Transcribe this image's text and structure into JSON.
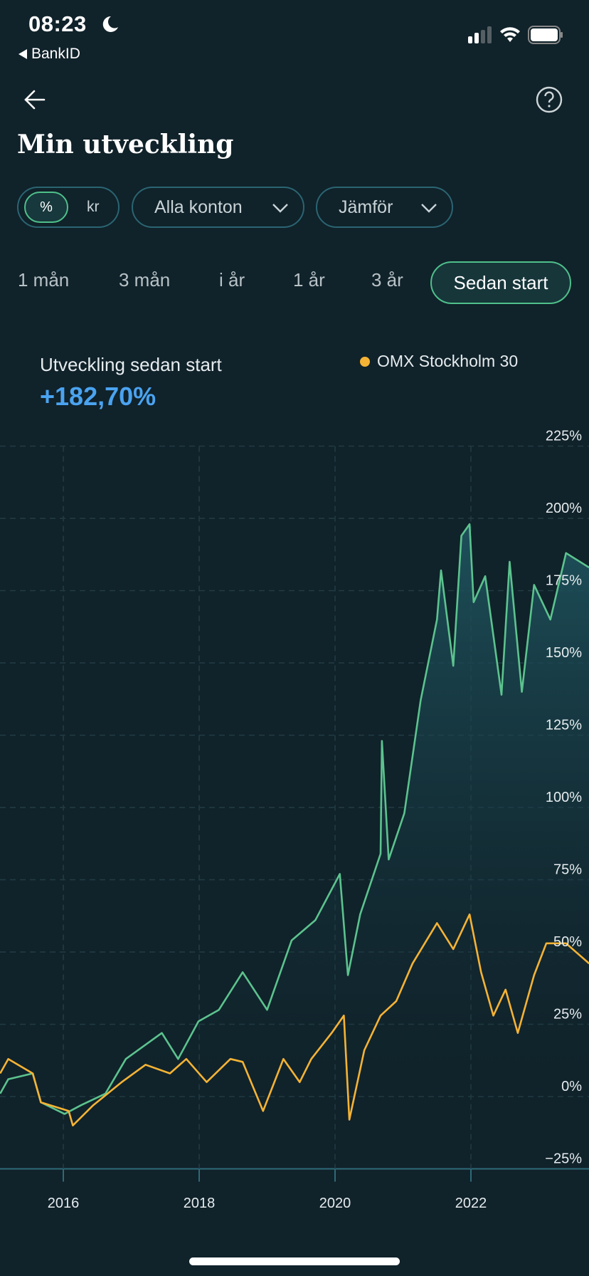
{
  "status_bar": {
    "time": "08:23",
    "back_app": "BankID"
  },
  "header": {
    "title": "Min utveckling"
  },
  "filters": {
    "unit_options": [
      "%",
      "kr"
    ],
    "selected_unit": "%",
    "accounts": "Alla konton",
    "compare": "Jämför"
  },
  "periods": [
    "1 mån",
    "3 mån",
    "i år",
    "1 år",
    "3 år",
    "Sedan start"
  ],
  "selected_period": "Sedan start",
  "summary": {
    "label": "Utveckling sedan start",
    "value": "+182,70%"
  },
  "colors": {
    "background": "#10222a",
    "portfolio": "#5cc38e",
    "benchmark": "#f5b335",
    "value": "#4aa3f0",
    "pill_border": "#2a6572"
  },
  "chart_data": {
    "type": "line",
    "title": "",
    "xlabel": "",
    "ylabel": "",
    "xlim": [
      2015.07,
      2023.74
    ],
    "ylim": [
      -25,
      225
    ],
    "grid": true,
    "legend": "top-right",
    "x_ticks": [
      2016,
      2018,
      2020,
      2022
    ],
    "x_tick_labels": [
      "2016",
      "2018",
      "2020",
      "2022"
    ],
    "y_ticks": [
      -25,
      0,
      25,
      50,
      75,
      100,
      125,
      150,
      175,
      200,
      225
    ],
    "y_tick_labels": [
      "−25%",
      "0%",
      "25%",
      "50%",
      "75%",
      "100%",
      "125%",
      "150%",
      "175%",
      "200%",
      "225%"
    ],
    "series": [
      {
        "name": "Min utveckling",
        "points": [
          [
            2015.07,
            1
          ],
          [
            2015.19,
            6
          ],
          [
            2015.55,
            8
          ],
          [
            2015.67,
            -2
          ],
          [
            2016.02,
            -6
          ],
          [
            2016.26,
            -3
          ],
          [
            2016.62,
            1
          ],
          [
            2016.92,
            13
          ],
          [
            2017.45,
            22
          ],
          [
            2017.69,
            13
          ],
          [
            2017.99,
            26
          ],
          [
            2018.29,
            30
          ],
          [
            2018.64,
            43
          ],
          [
            2019.0,
            30
          ],
          [
            2019.36,
            54
          ],
          [
            2019.71,
            61
          ],
          [
            2020.07,
            77
          ],
          [
            2020.19,
            42
          ],
          [
            2020.37,
            63
          ],
          [
            2020.67,
            84
          ],
          [
            2020.69,
            123
          ],
          [
            2020.79,
            82
          ],
          [
            2021.02,
            98
          ],
          [
            2021.26,
            137
          ],
          [
            2021.5,
            165
          ],
          [
            2021.56,
            182
          ],
          [
            2021.74,
            149
          ],
          [
            2021.86,
            194
          ],
          [
            2021.98,
            198
          ],
          [
            2022.04,
            171
          ],
          [
            2022.21,
            180
          ],
          [
            2022.45,
            139
          ],
          [
            2022.57,
            185
          ],
          [
            2022.75,
            140
          ],
          [
            2022.93,
            177
          ],
          [
            2023.17,
            165
          ],
          [
            2023.4,
            188
          ],
          [
            2023.74,
            183
          ]
        ]
      },
      {
        "name": "OMX Stockholm 30",
        "points": [
          [
            2015.07,
            8
          ],
          [
            2015.19,
            13
          ],
          [
            2015.55,
            8
          ],
          [
            2015.67,
            -2
          ],
          [
            2016.08,
            -5
          ],
          [
            2016.14,
            -10
          ],
          [
            2016.44,
            -3
          ],
          [
            2016.86,
            5
          ],
          [
            2017.21,
            11
          ],
          [
            2017.57,
            8
          ],
          [
            2017.81,
            13
          ],
          [
            2018.11,
            5
          ],
          [
            2018.46,
            13
          ],
          [
            2018.64,
            12
          ],
          [
            2018.94,
            -5
          ],
          [
            2019.24,
            13
          ],
          [
            2019.48,
            5
          ],
          [
            2019.65,
            13
          ],
          [
            2019.95,
            22
          ],
          [
            2020.13,
            28
          ],
          [
            2020.21,
            -8
          ],
          [
            2020.43,
            16
          ],
          [
            2020.67,
            28
          ],
          [
            2020.9,
            33
          ],
          [
            2021.14,
            46
          ],
          [
            2021.5,
            60
          ],
          [
            2021.74,
            51
          ],
          [
            2021.98,
            63
          ],
          [
            2022.15,
            43
          ],
          [
            2022.33,
            28
          ],
          [
            2022.51,
            37
          ],
          [
            2022.69,
            22
          ],
          [
            2022.93,
            42
          ],
          [
            2023.11,
            53
          ],
          [
            2023.4,
            53
          ],
          [
            2023.74,
            46
          ]
        ]
      }
    ]
  }
}
